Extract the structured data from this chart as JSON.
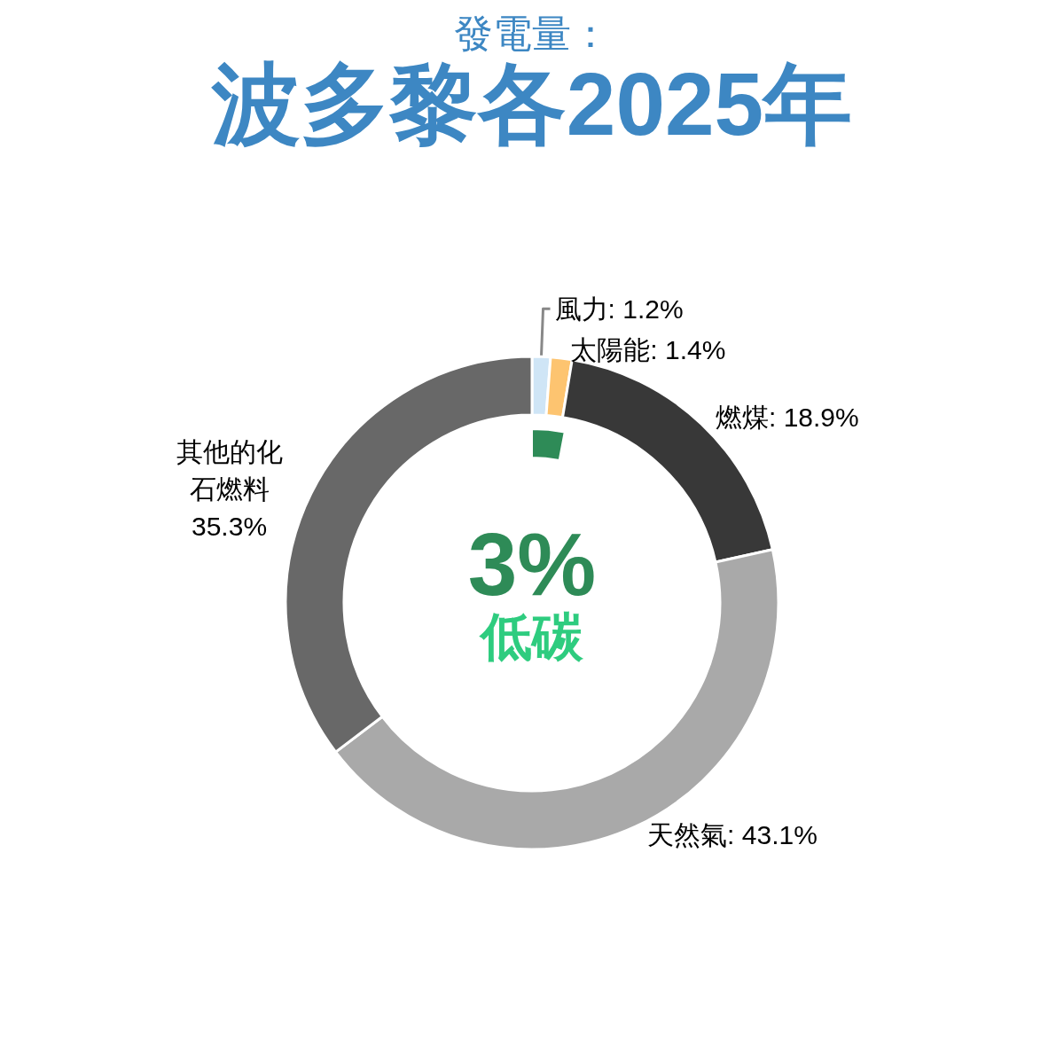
{
  "chart_data": [
    {
      "type": "donut",
      "subtitle": "發電量：",
      "title": "波多黎各2025年",
      "categories": [
        "風力",
        "太陽能",
        "燃煤",
        "天然氣",
        "其他的化石燃料"
      ],
      "values": [
        1.2,
        1.4,
        18.9,
        43.1,
        35.3
      ],
      "colors": [
        "#cfe5f6",
        "#fdc470",
        "#383838",
        "#a9a9a9",
        "#686868"
      ],
      "value_labels": [
        "1.2%",
        "1.4%",
        "18.9%",
        "43.1%",
        "35.3%"
      ]
    },
    {
      "type": "pie",
      "categories": [
        "低碳"
      ],
      "values": [
        3
      ],
      "colors": [
        "#2e8b57"
      ],
      "value_labels": [
        "3%"
      ]
    }
  ]
}
